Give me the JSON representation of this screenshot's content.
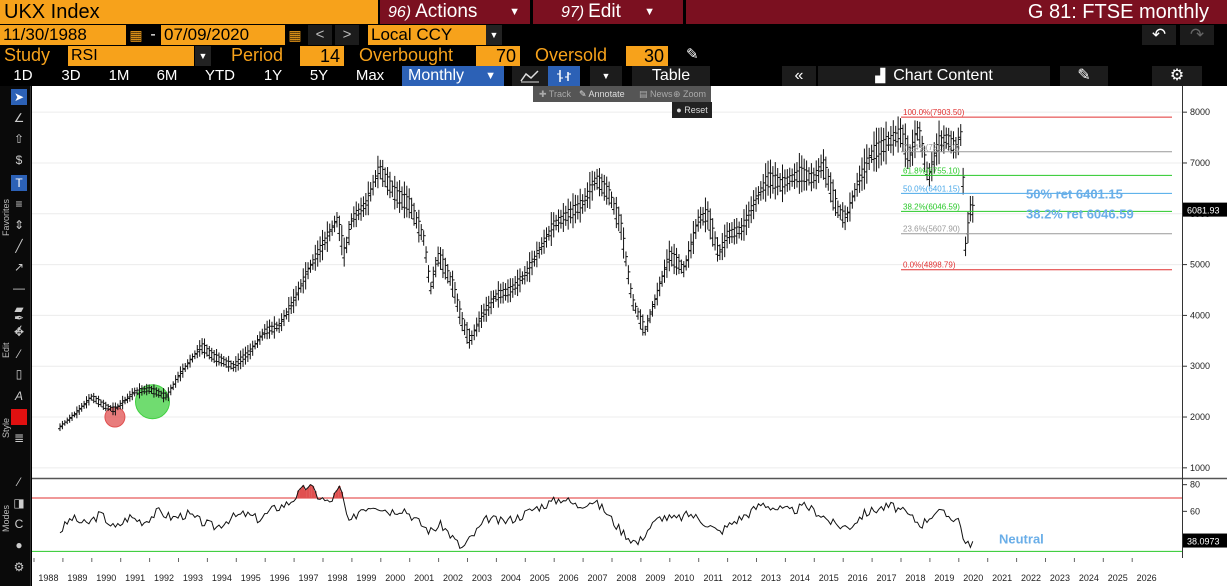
{
  "header": {
    "ticker": "UKX Index",
    "actions": {
      "num": "96)",
      "label": "Actions"
    },
    "edit": {
      "num": "97)",
      "label": "Edit"
    },
    "title": "G 81: FTSE monthly",
    "start_date": "11/30/1988",
    "end_date": "07/09/2020",
    "currency": "Local CCY"
  },
  "study": {
    "label": "Study",
    "value": "RSI",
    "period_label": "Period",
    "period": "14",
    "overbought_label": "Overbought",
    "overbought": "70",
    "oversold_label": "Oversold",
    "oversold": "30"
  },
  "toolbar": {
    "ranges": [
      "1D",
      "3D",
      "1M",
      "6M",
      "YTD",
      "1Y",
      "5Y",
      "Max"
    ],
    "frequency": "Monthly",
    "table_label": "Table",
    "chart_content_label": "Chart Content"
  },
  "popup": {
    "items": [
      "Track",
      "Annotate",
      "News",
      "Zoom"
    ],
    "reset": "Reset"
  },
  "sidebar": {
    "sections": [
      "Favorites",
      "Edit",
      "Style",
      "Modes"
    ]
  },
  "colors": {
    "accent": "#f7a21b",
    "header_red": "#7b1020",
    "selected": "#2c61b6",
    "fib_red": "#e03030",
    "fib_green": "#28c828",
    "fib_blue": "#4aa8e8",
    "annotation": "#6aaee8"
  },
  "chart_data": [
    {
      "type": "line",
      "title": "",
      "ylim": [
        800,
        8200
      ],
      "yticks": [
        1000,
        2000,
        3000,
        4000,
        5000,
        6000,
        7000,
        8000
      ],
      "x": [
        1988.9,
        1989.5,
        1990.0,
        1990.5,
        1990.8,
        1991.5,
        1992.0,
        1992.6,
        1993.0,
        1993.8,
        1994.2,
        1994.9,
        1995.5,
        1996.0,
        1996.5,
        1997.0,
        1997.5,
        1998.0,
        1998.5,
        1998.75,
        1999.0,
        1999.5,
        1999.95,
        2000.5,
        2001.0,
        2001.5,
        2001.72,
        2002.0,
        2002.5,
        2002.8,
        2003.1,
        2003.5,
        2004.0,
        2004.5,
        2005.0,
        2005.5,
        2006.0,
        2006.5,
        2007.0,
        2007.45,
        2007.9,
        2008.3,
        2008.7,
        2009.15,
        2009.5,
        2010.0,
        2010.5,
        2011.0,
        2011.3,
        2011.7,
        2012.0,
        2012.5,
        2013.0,
        2013.4,
        2013.9,
        2014.5,
        2015.0,
        2015.3,
        2015.8,
        2016.1,
        2016.5,
        2017.0,
        2017.5,
        2018.0,
        2018.3,
        2018.6,
        2018.95,
        2019.3,
        2019.6,
        2019.9,
        2020.1,
        2020.22,
        2020.4,
        2020.52
      ],
      "y": [
        1800,
        2100,
        2400,
        2200,
        2150,
        2500,
        2550,
        2400,
        2800,
        3400,
        3200,
        3000,
        3300,
        3700,
        3800,
        4300,
        4900,
        5400,
        5900,
        5200,
        5900,
        6200,
        6900,
        6400,
        6200,
        5500,
        4500,
        5200,
        4600,
        3900,
        3500,
        4000,
        4400,
        4500,
        4800,
        5300,
        5800,
        6000,
        6200,
        6700,
        6400,
        5800,
        4300,
        3700,
        4300,
        5200,
        4900,
        5900,
        6000,
        5200,
        5600,
        5700,
        6300,
        6700,
        6600,
        6800,
        6700,
        7000,
        6100,
        5900,
        6600,
        7200,
        7400,
        7600,
        7100,
        7700,
        6700,
        7400,
        7500,
        7300,
        7600,
        5300,
        6100,
        6082
      ],
      "last_value": "6081.93",
      "fibonacci": [
        {
          "label": "100.0%(7903.50)",
          "value": 7903.5,
          "color": "#e03030"
        },
        {
          "label": "76.4%(7219.70)",
          "value": 7219.7,
          "color": "#999999"
        },
        {
          "label": "61.8%(6755.10)",
          "value": 6755.1,
          "color": "#28c828"
        },
        {
          "label": "50.0%(6401.15)",
          "value": 6401.15,
          "color": "#4aa8e8"
        },
        {
          "label": "38.2%(6046.59)",
          "value": 6046.59,
          "color": "#28c828"
        },
        {
          "label": "23.6%(5607.90)",
          "value": 5607.9,
          "color": "#999999"
        },
        {
          "label": "0.0%(4898.79)",
          "value": 4898.79,
          "color": "#e03030"
        }
      ],
      "annotations": [
        "50% ret 6401.15",
        "38.2% ret 6046.59"
      ],
      "markers": [
        {
          "x": 1990.8,
          "y": 2000,
          "color": "#e05050"
        },
        {
          "x": 1992.1,
          "y": 2300,
          "color": "#40d040"
        }
      ]
    },
    {
      "type": "line",
      "title": "",
      "ylim": [
        25,
        85
      ],
      "yticks": [
        40,
        60,
        80
      ],
      "overbought": 70,
      "oversold": 30,
      "x": [
        1988.9,
        1989.3,
        1989.8,
        1990.3,
        1990.8,
        1991.3,
        1991.8,
        1992.3,
        1992.8,
        1993.3,
        1993.8,
        1994.3,
        1994.8,
        1995.3,
        1995.8,
        1996.3,
        1996.8,
        1997.2,
        1997.5,
        1997.8,
        1998.2,
        1998.6,
        1998.9,
        1999.3,
        1999.8,
        2000.3,
        2000.8,
        2001.3,
        2001.7,
        2002.1,
        2002.5,
        2002.8,
        2003.2,
        2003.7,
        2004.2,
        2004.8,
        2005.3,
        2005.8,
        2006.3,
        2006.8,
        2007.3,
        2007.7,
        2008.2,
        2008.6,
        2008.9,
        2009.3,
        2009.7,
        2010.2,
        2010.7,
        2011.2,
        2011.7,
        2012.2,
        2012.7,
        2013.2,
        2013.7,
        2014.2,
        2014.7,
        2015.2,
        2015.7,
        2016.2,
        2016.7,
        2017.2,
        2017.7,
        2018.2,
        2018.7,
        2019.2,
        2019.7,
        2020.0,
        2020.25,
        2020.52
      ],
      "y": [
        45,
        55,
        50,
        58,
        47,
        56,
        52,
        60,
        55,
        58,
        52,
        48,
        55,
        58,
        54,
        62,
        66,
        74,
        80,
        72,
        66,
        78,
        50,
        62,
        65,
        60,
        62,
        52,
        45,
        50,
        40,
        32,
        42,
        55,
        52,
        56,
        62,
        66,
        70,
        64,
        68,
        62,
        48,
        40,
        36,
        48,
        56,
        54,
        58,
        52,
        44,
        52,
        58,
        66,
        62,
        60,
        64,
        58,
        50,
        48,
        58,
        62,
        64,
        58,
        50,
        60,
        56,
        54,
        34,
        38.0973
      ],
      "last_value": "38.0973",
      "annotation": "Neutral"
    }
  ],
  "x_axis_years": [
    "1988",
    "1989",
    "1990",
    "1991",
    "1992",
    "1993",
    "1994",
    "1995",
    "1996",
    "1997",
    "1998",
    "1999",
    "2000",
    "2001",
    "2002",
    "2003",
    "2004",
    "2005",
    "2006",
    "2007",
    "2008",
    "2009",
    "2010",
    "2011",
    "2012",
    "2013",
    "2014",
    "2015",
    "2016",
    "2017",
    "2018",
    "2019",
    "2020",
    "2021",
    "2022",
    "2023",
    "2024",
    "2025",
    "2026"
  ]
}
